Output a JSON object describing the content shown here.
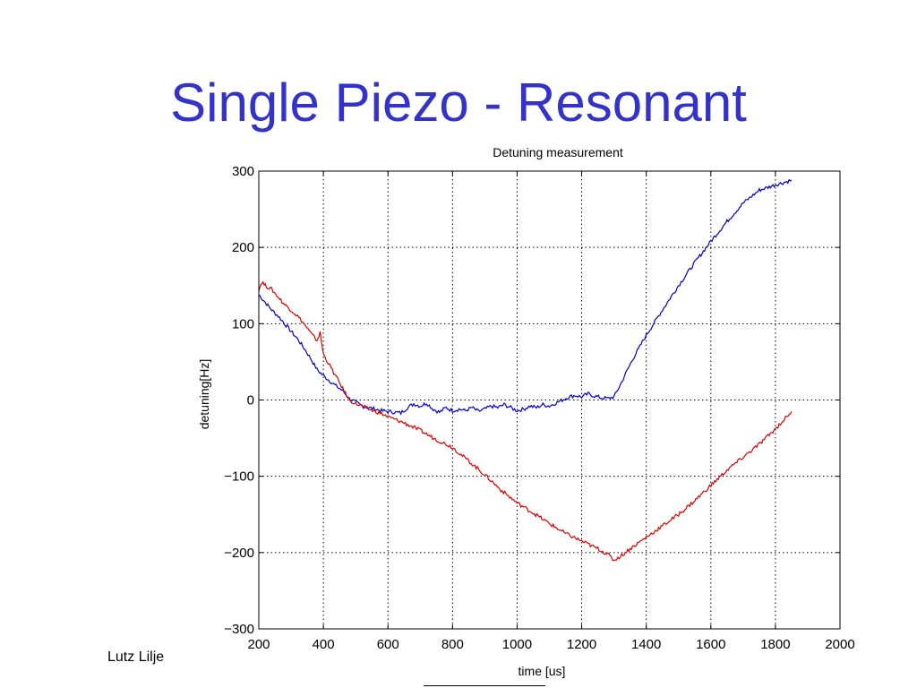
{
  "slide": {
    "title": "Single Piezo - Resonant",
    "author": "Lutz Lilje"
  },
  "chart_data": {
    "type": "line",
    "title": "Detuning measurement",
    "xlabel": "time [us]",
    "ylabel": "detuning[Hz]",
    "xlim": [
      200,
      2000
    ],
    "ylim": [
      -300,
      300
    ],
    "xticks": [
      200,
      400,
      600,
      800,
      1000,
      1200,
      1400,
      1600,
      1800,
      2000
    ],
    "yticks": [
      300,
      200,
      100,
      0,
      -100,
      -200,
      -300
    ],
    "ytick_labels": [
      "300",
      "200",
      "100",
      "0",
      "−100",
      "−200",
      "−300"
    ],
    "grid": true,
    "series": [
      {
        "color": "#0000cc",
        "points": [
          [
            200,
            138
          ],
          [
            220,
            128
          ],
          [
            240,
            118
          ],
          [
            260,
            110
          ],
          [
            280,
            100
          ],
          [
            300,
            90
          ],
          [
            320,
            80
          ],
          [
            340,
            68
          ],
          [
            360,
            55
          ],
          [
            380,
            40
          ],
          [
            400,
            32
          ],
          [
            420,
            25
          ],
          [
            440,
            18
          ],
          [
            460,
            12
          ],
          [
            480,
            2
          ],
          [
            500,
            -3
          ],
          [
            520,
            -8
          ],
          [
            540,
            -10
          ],
          [
            560,
            -12
          ],
          [
            580,
            -14
          ],
          [
            600,
            -15
          ],
          [
            620,
            -16
          ],
          [
            640,
            -17
          ],
          [
            660,
            -10
          ],
          [
            680,
            -5
          ],
          [
            700,
            -8
          ],
          [
            720,
            -4
          ],
          [
            740,
            -12
          ],
          [
            760,
            -16
          ],
          [
            780,
            -10
          ],
          [
            800,
            -14
          ],
          [
            820,
            -12
          ],
          [
            840,
            -14
          ],
          [
            860,
            -10
          ],
          [
            880,
            -15
          ],
          [
            900,
            -12
          ],
          [
            920,
            -8
          ],
          [
            940,
            -10
          ],
          [
            960,
            -6
          ],
          [
            980,
            -10
          ],
          [
            1000,
            -14
          ],
          [
            1020,
            -12
          ],
          [
            1040,
            -8
          ],
          [
            1060,
            -10
          ],
          [
            1080,
            -6
          ],
          [
            1100,
            -8
          ],
          [
            1120,
            -4
          ],
          [
            1140,
            0
          ],
          [
            1160,
            4
          ],
          [
            1180,
            6
          ],
          [
            1200,
            4
          ],
          [
            1220,
            8
          ],
          [
            1240,
            5
          ],
          [
            1260,
            3
          ],
          [
            1280,
            2
          ],
          [
            1300,
            4
          ],
          [
            1320,
            20
          ],
          [
            1340,
            38
          ],
          [
            1360,
            55
          ],
          [
            1380,
            70
          ],
          [
            1400,
            85
          ],
          [
            1450,
            118
          ],
          [
            1500,
            150
          ],
          [
            1550,
            180
          ],
          [
            1600,
            208
          ],
          [
            1650,
            234
          ],
          [
            1700,
            258
          ],
          [
            1750,
            275
          ],
          [
            1800,
            282
          ],
          [
            1850,
            288
          ]
        ]
      },
      {
        "color": "#dd0000",
        "points": [
          [
            200,
            145
          ],
          [
            210,
            155
          ],
          [
            220,
            150
          ],
          [
            240,
            145
          ],
          [
            260,
            135
          ],
          [
            280,
            125
          ],
          [
            300,
            118
          ],
          [
            320,
            110
          ],
          [
            340,
            100
          ],
          [
            360,
            88
          ],
          [
            380,
            78
          ],
          [
            390,
            88
          ],
          [
            400,
            60
          ],
          [
            420,
            45
          ],
          [
            440,
            30
          ],
          [
            460,
            15
          ],
          [
            480,
            0
          ],
          [
            500,
            -5
          ],
          [
            520,
            -8
          ],
          [
            540,
            -12
          ],
          [
            560,
            -15
          ],
          [
            580,
            -18
          ],
          [
            600,
            -22
          ],
          [
            650,
            -30
          ],
          [
            700,
            -40
          ],
          [
            750,
            -52
          ],
          [
            800,
            -62
          ],
          [
            850,
            -80
          ],
          [
            900,
            -98
          ],
          [
            950,
            -118
          ],
          [
            1000,
            -135
          ],
          [
            1050,
            -148
          ],
          [
            1100,
            -162
          ],
          [
            1150,
            -175
          ],
          [
            1200,
            -185
          ],
          [
            1250,
            -195
          ],
          [
            1280,
            -202
          ],
          [
            1300,
            -210
          ],
          [
            1320,
            -205
          ],
          [
            1350,
            -195
          ],
          [
            1400,
            -180
          ],
          [
            1450,
            -165
          ],
          [
            1500,
            -150
          ],
          [
            1550,
            -132
          ],
          [
            1600,
            -112
          ],
          [
            1650,
            -92
          ],
          [
            1700,
            -75
          ],
          [
            1750,
            -58
          ],
          [
            1800,
            -38
          ],
          [
            1850,
            -15
          ]
        ]
      }
    ]
  }
}
